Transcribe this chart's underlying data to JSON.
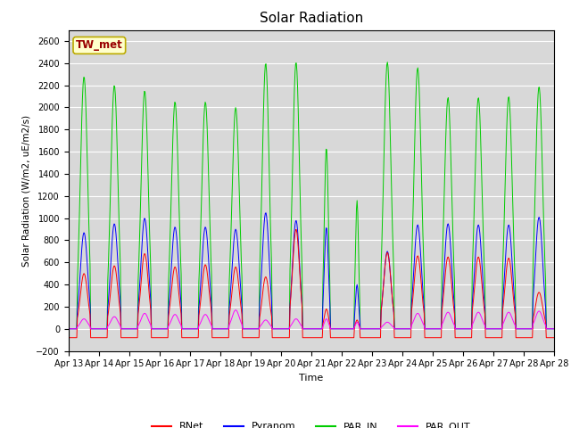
{
  "title": "Solar Radiation",
  "ylabel": "Solar Radiation (W/m2, uE/m2/s)",
  "xlabel": "Time",
  "ylim": [
    -200,
    2700
  ],
  "yticks": [
    -200,
    0,
    200,
    400,
    600,
    800,
    1000,
    1200,
    1400,
    1600,
    1800,
    2000,
    2200,
    2400,
    2600
  ],
  "xtick_labels": [
    "Apr 13",
    "Apr 14",
    "Apr 15",
    "Apr 16",
    "Apr 17",
    "Apr 18",
    "Apr 19",
    "Apr 20",
    "Apr 21",
    "Apr 22",
    "Apr 23",
    "Apr 24",
    "Apr 25",
    "Apr 26",
    "Apr 27",
    "Apr 28"
  ],
  "station_label": "TW_met",
  "colors": {
    "RNet": "#ff0000",
    "Pyranom": "#0000ff",
    "PAR_IN": "#00cc00",
    "PAR_OUT": "#ff00ff"
  },
  "bg_color": "#d8d8d8",
  "grid_color": "#ffffff",
  "n_days": 16,
  "day_peaks": {
    "PAR_IN": [
      2280,
      2200,
      2150,
      2050,
      2050,
      2000,
      2400,
      2410,
      1640,
      1160,
      2410,
      2360,
      2090,
      2090,
      2100,
      2190
    ],
    "Pyranom": [
      870,
      950,
      1000,
      920,
      920,
      900,
      1050,
      980,
      920,
      400,
      700,
      940,
      950,
      940,
      940,
      1010
    ],
    "RNet": [
      500,
      570,
      680,
      560,
      580,
      560,
      470,
      900,
      180,
      80,
      690,
      660,
      650,
      650,
      640,
      330
    ],
    "PAR_OUT": [
      90,
      110,
      140,
      130,
      130,
      170,
      80,
      90,
      90,
      60,
      60,
      140,
      150,
      150,
      150,
      160
    ]
  },
  "night_base": {
    "RNet": -80,
    "Pyranom": 0,
    "PAR_IN": 0,
    "PAR_OUT": 0
  },
  "rise_times": [
    7.0,
    7.0,
    7.0,
    7.0,
    7.0,
    7.0,
    7.0,
    7.0,
    9.0,
    10.0,
    7.0,
    7.0,
    7.0,
    7.0,
    7.0,
    7.0
  ],
  "set_times": [
    17.5,
    17.5,
    17.5,
    17.5,
    17.5,
    17.5,
    17.0,
    17.0,
    15.0,
    14.5,
    17.5,
    17.5,
    17.5,
    17.5,
    17.5,
    17.5
  ]
}
